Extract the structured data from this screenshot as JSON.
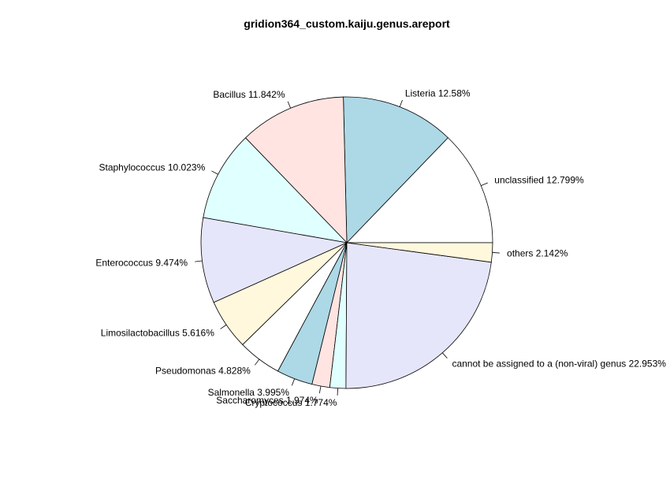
{
  "chart_data": {
    "type": "pie",
    "title": "gridion364_custom.kaiju.genus.areport",
    "slices": [
      {
        "label": "unclassified 12.799%",
        "value": 12.799,
        "color": "#ffffff"
      },
      {
        "label": "Listeria 12.58%",
        "value": 12.58,
        "color": "#add8e6"
      },
      {
        "label": "Bacillus 11.842%",
        "value": 11.842,
        "color": "#ffe4e1"
      },
      {
        "label": "Staphylococcus 10.023%",
        "value": 10.023,
        "color": "#e0ffff"
      },
      {
        "label": "Enterococcus 9.474%",
        "value": 9.474,
        "color": "#e6e6fa"
      },
      {
        "label": "Limosilactobacillus 5.616%",
        "value": 5.616,
        "color": "#fff8dc"
      },
      {
        "label": "Pseudomonas 4.828%",
        "value": 4.828,
        "color": "#ffffff"
      },
      {
        "label": "Salmonella 3.995%",
        "value": 3.995,
        "color": "#add8e6"
      },
      {
        "label": "Saccharomyces 1.974%",
        "value": 1.974,
        "color": "#ffe4e1"
      },
      {
        "label": "Cryptococcus 1.774%",
        "value": 1.774,
        "color": "#e0ffff"
      },
      {
        "label": "cannot be assigned to a (non-viral) genus 22.953%",
        "value": 22.953,
        "color": "#e6e6fa"
      },
      {
        "label": "others 2.142%",
        "value": 2.142,
        "color": "#fff8dc"
      }
    ]
  }
}
